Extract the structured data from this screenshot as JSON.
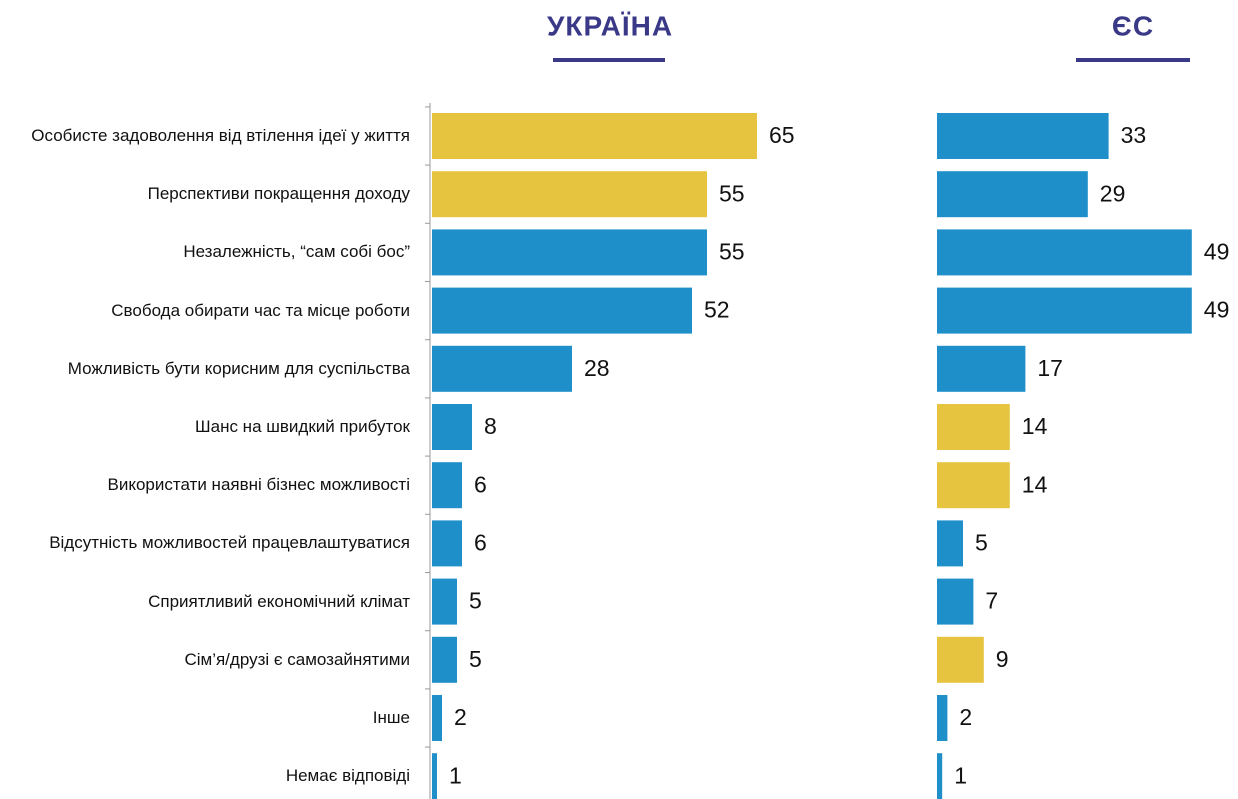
{
  "chart_data": {
    "type": "bar",
    "orientation": "horizontal",
    "categories": [
      "Особисте задоволення від втілення ідеї у життя",
      "Перспективи покращення доходу",
      "Незалежність, “сам собі бос”",
      "Свобода обирати час та місце роботи",
      "Можливість бути корисним для суспільства",
      "Шанс на швидкий прибуток",
      "Використати наявні бізнес можливості",
      "Відсутність можливостей працевлаштуватися",
      "Сприятливий економічний клімат",
      "Сім’я/друзі є самозайнятими",
      "Інше",
      "Немає відповіді"
    ],
    "series": [
      {
        "name": "УКРАЇНА",
        "values": [
          65,
          55,
          55,
          52,
          28,
          8,
          6,
          6,
          5,
          5,
          2,
          1
        ],
        "colors": [
          "#e7c440",
          "#e7c440",
          "#1e8fc9",
          "#1e8fc9",
          "#1e8fc9",
          "#1e8fc9",
          "#1e8fc9",
          "#1e8fc9",
          "#1e8fc9",
          "#1e8fc9",
          "#1e8fc9",
          "#1e8fc9"
        ]
      },
      {
        "name": "ЄС",
        "values": [
          33,
          29,
          49,
          49,
          17,
          14,
          14,
          5,
          7,
          9,
          2,
          1
        ],
        "colors": [
          "#1e8fc9",
          "#1e8fc9",
          "#1e8fc9",
          "#1e8fc9",
          "#1e8fc9",
          "#e7c440",
          "#e7c440",
          "#1e8fc9",
          "#1e8fc9",
          "#e7c440",
          "#1e8fc9",
          "#1e8fc9"
        ]
      }
    ]
  }
}
